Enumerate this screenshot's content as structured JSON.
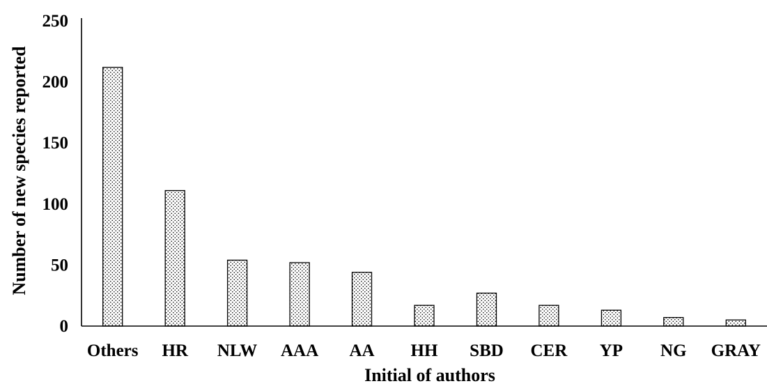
{
  "chart_data": {
    "type": "bar",
    "title": "",
    "xlabel": "Initial of authors",
    "ylabel": "Number of new species reported",
    "categories": [
      "Others",
      "HR",
      "NLW",
      "AAA",
      "AA",
      "HH",
      "SBD",
      "CER",
      "YP",
      "NG",
      "GRAY"
    ],
    "values": [
      212,
      111,
      54,
      52,
      44,
      17,
      27,
      17,
      13,
      7,
      5
    ],
    "ylim": [
      0,
      250
    ],
    "yticks": [
      "0",
      "50",
      "100",
      "150",
      "200",
      "250"
    ],
    "grid": false,
    "legend": "none",
    "bar_pattern": "dotted",
    "colors": {
      "bar_fill": "#ffffff",
      "bar_stroke": "#000000",
      "dot": "#000000"
    }
  }
}
